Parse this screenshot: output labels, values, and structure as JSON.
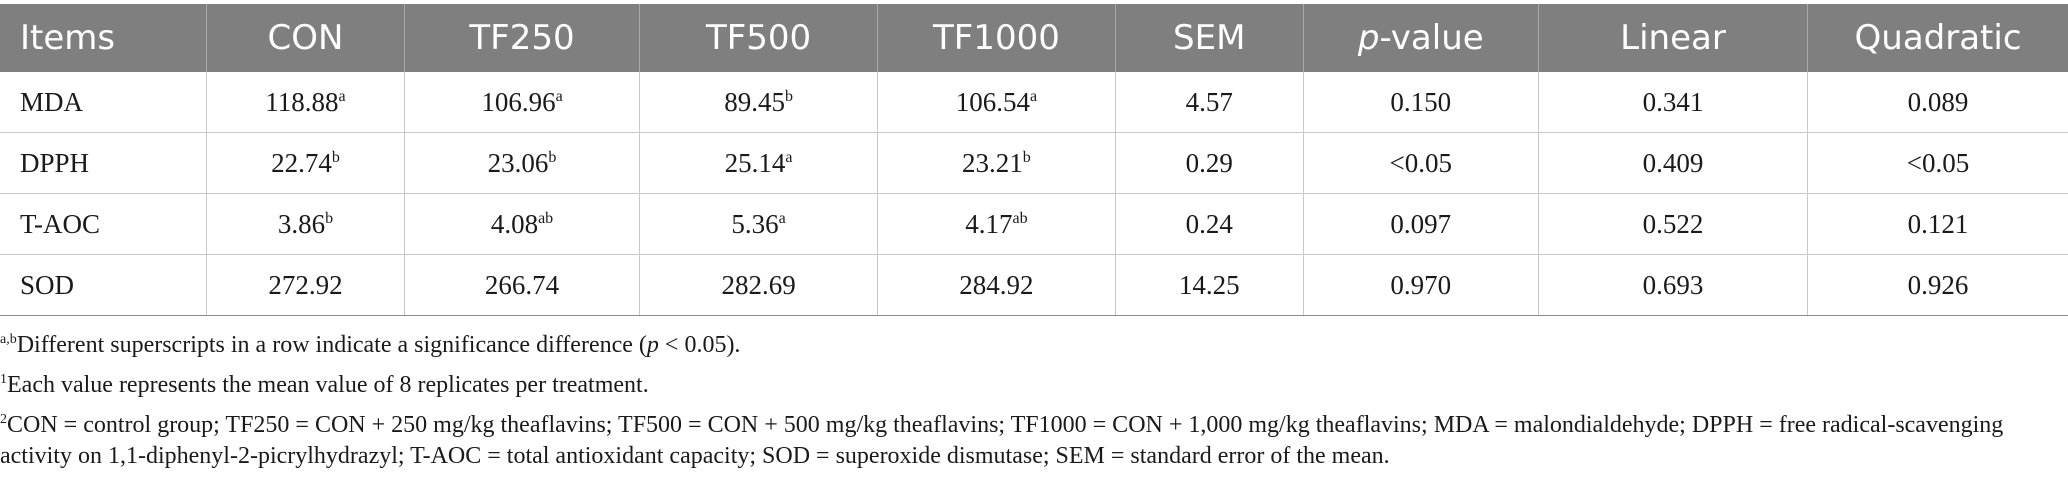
{
  "table": {
    "headers": [
      "Items",
      "CON",
      "TF250",
      "TF500",
      "TF1000",
      "SEM",
      "-value",
      "Linear",
      "Quadratic"
    ],
    "p_italic": "p",
    "rows": [
      {
        "item": "MDA",
        "con": "118.88",
        "con_sup": "a",
        "tf250": "106.96",
        "tf250_sup": "a",
        "tf500": "89.45",
        "tf500_sup": "b",
        "tf1000": "106.54",
        "tf1000_sup": "a",
        "sem": "4.57",
        "p": "0.150",
        "linear": "0.341",
        "quadratic": "0.089"
      },
      {
        "item": "DPPH",
        "con": "22.74",
        "con_sup": "b",
        "tf250": "23.06",
        "tf250_sup": "b",
        "tf500": "25.14",
        "tf500_sup": "a",
        "tf1000": "23.21",
        "tf1000_sup": "b",
        "sem": "0.29",
        "p": "<0.05",
        "linear": "0.409",
        "quadratic": "<0.05"
      },
      {
        "item": "T-AOC",
        "con": "3.86",
        "con_sup": "b",
        "tf250": "4.08",
        "tf250_sup": "ab",
        "tf500": "5.36",
        "tf500_sup": "a",
        "tf1000": "4.17",
        "tf1000_sup": "ab",
        "sem": "0.24",
        "p": "0.097",
        "linear": "0.522",
        "quadratic": "0.121"
      },
      {
        "item": "SOD",
        "con": "272.92",
        "con_sup": "",
        "tf250": "266.74",
        "tf250_sup": "",
        "tf500": "282.69",
        "tf500_sup": "",
        "tf1000": "284.92",
        "tf1000_sup": "",
        "sem": "14.25",
        "p": "0.970",
        "linear": "0.693",
        "quadratic": "0.926"
      }
    ]
  },
  "footnotes": {
    "n1_sup": "a,b",
    "n1_text_a": "Different superscripts in a row indicate a significance difference (",
    "n1_p": "p",
    "n1_text_b": " < 0.05).",
    "n2_sup": "1",
    "n2_text": "Each value represents the mean value of 8 replicates per treatment.",
    "n3_sup": "2",
    "n3_text": "CON = control group; TF250 = CON + 250 mg/kg theaflavins; TF500 = CON + 500 mg/kg theaflavins; TF1000 = CON + 1,000 mg/kg theaflavins; MDA = malondialdehyde; DPPH = free radical-scavenging activity on 1,1-diphenyl-2-picrylhydrazyl; T-AOC = total antioxidant capacity; SOD = superoxide dismutase; SEM = standard error of the mean."
  }
}
